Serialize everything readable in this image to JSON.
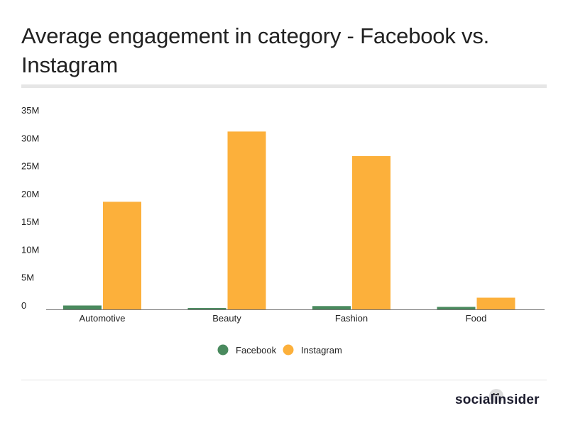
{
  "chart_data": {
    "type": "bar",
    "title": "Average engagement in category - Facebook vs. Instagram",
    "categories": [
      "Automotive",
      "Beauty",
      "Fashion",
      "Food"
    ],
    "series": [
      {
        "name": "Facebook",
        "color": "#4a8a5e",
        "values": [
          700000,
          250000,
          600000,
          450000
        ]
      },
      {
        "name": "Instagram",
        "color": "#fcb03b",
        "values": [
          19300000,
          31900000,
          27500000,
          2100000
        ]
      }
    ],
    "ylim": [
      0,
      35000000
    ],
    "yticks": [
      0,
      5000000,
      10000000,
      15000000,
      20000000,
      25000000,
      30000000,
      35000000
    ],
    "ytick_labels": [
      "0",
      "5M",
      "10M",
      "15M",
      "20M",
      "25M",
      "30M",
      "35M"
    ],
    "xlabel": "",
    "ylabel": "",
    "grid": false,
    "legend_position": "bottom"
  },
  "branding": {
    "logo_text": "socialinsider"
  }
}
